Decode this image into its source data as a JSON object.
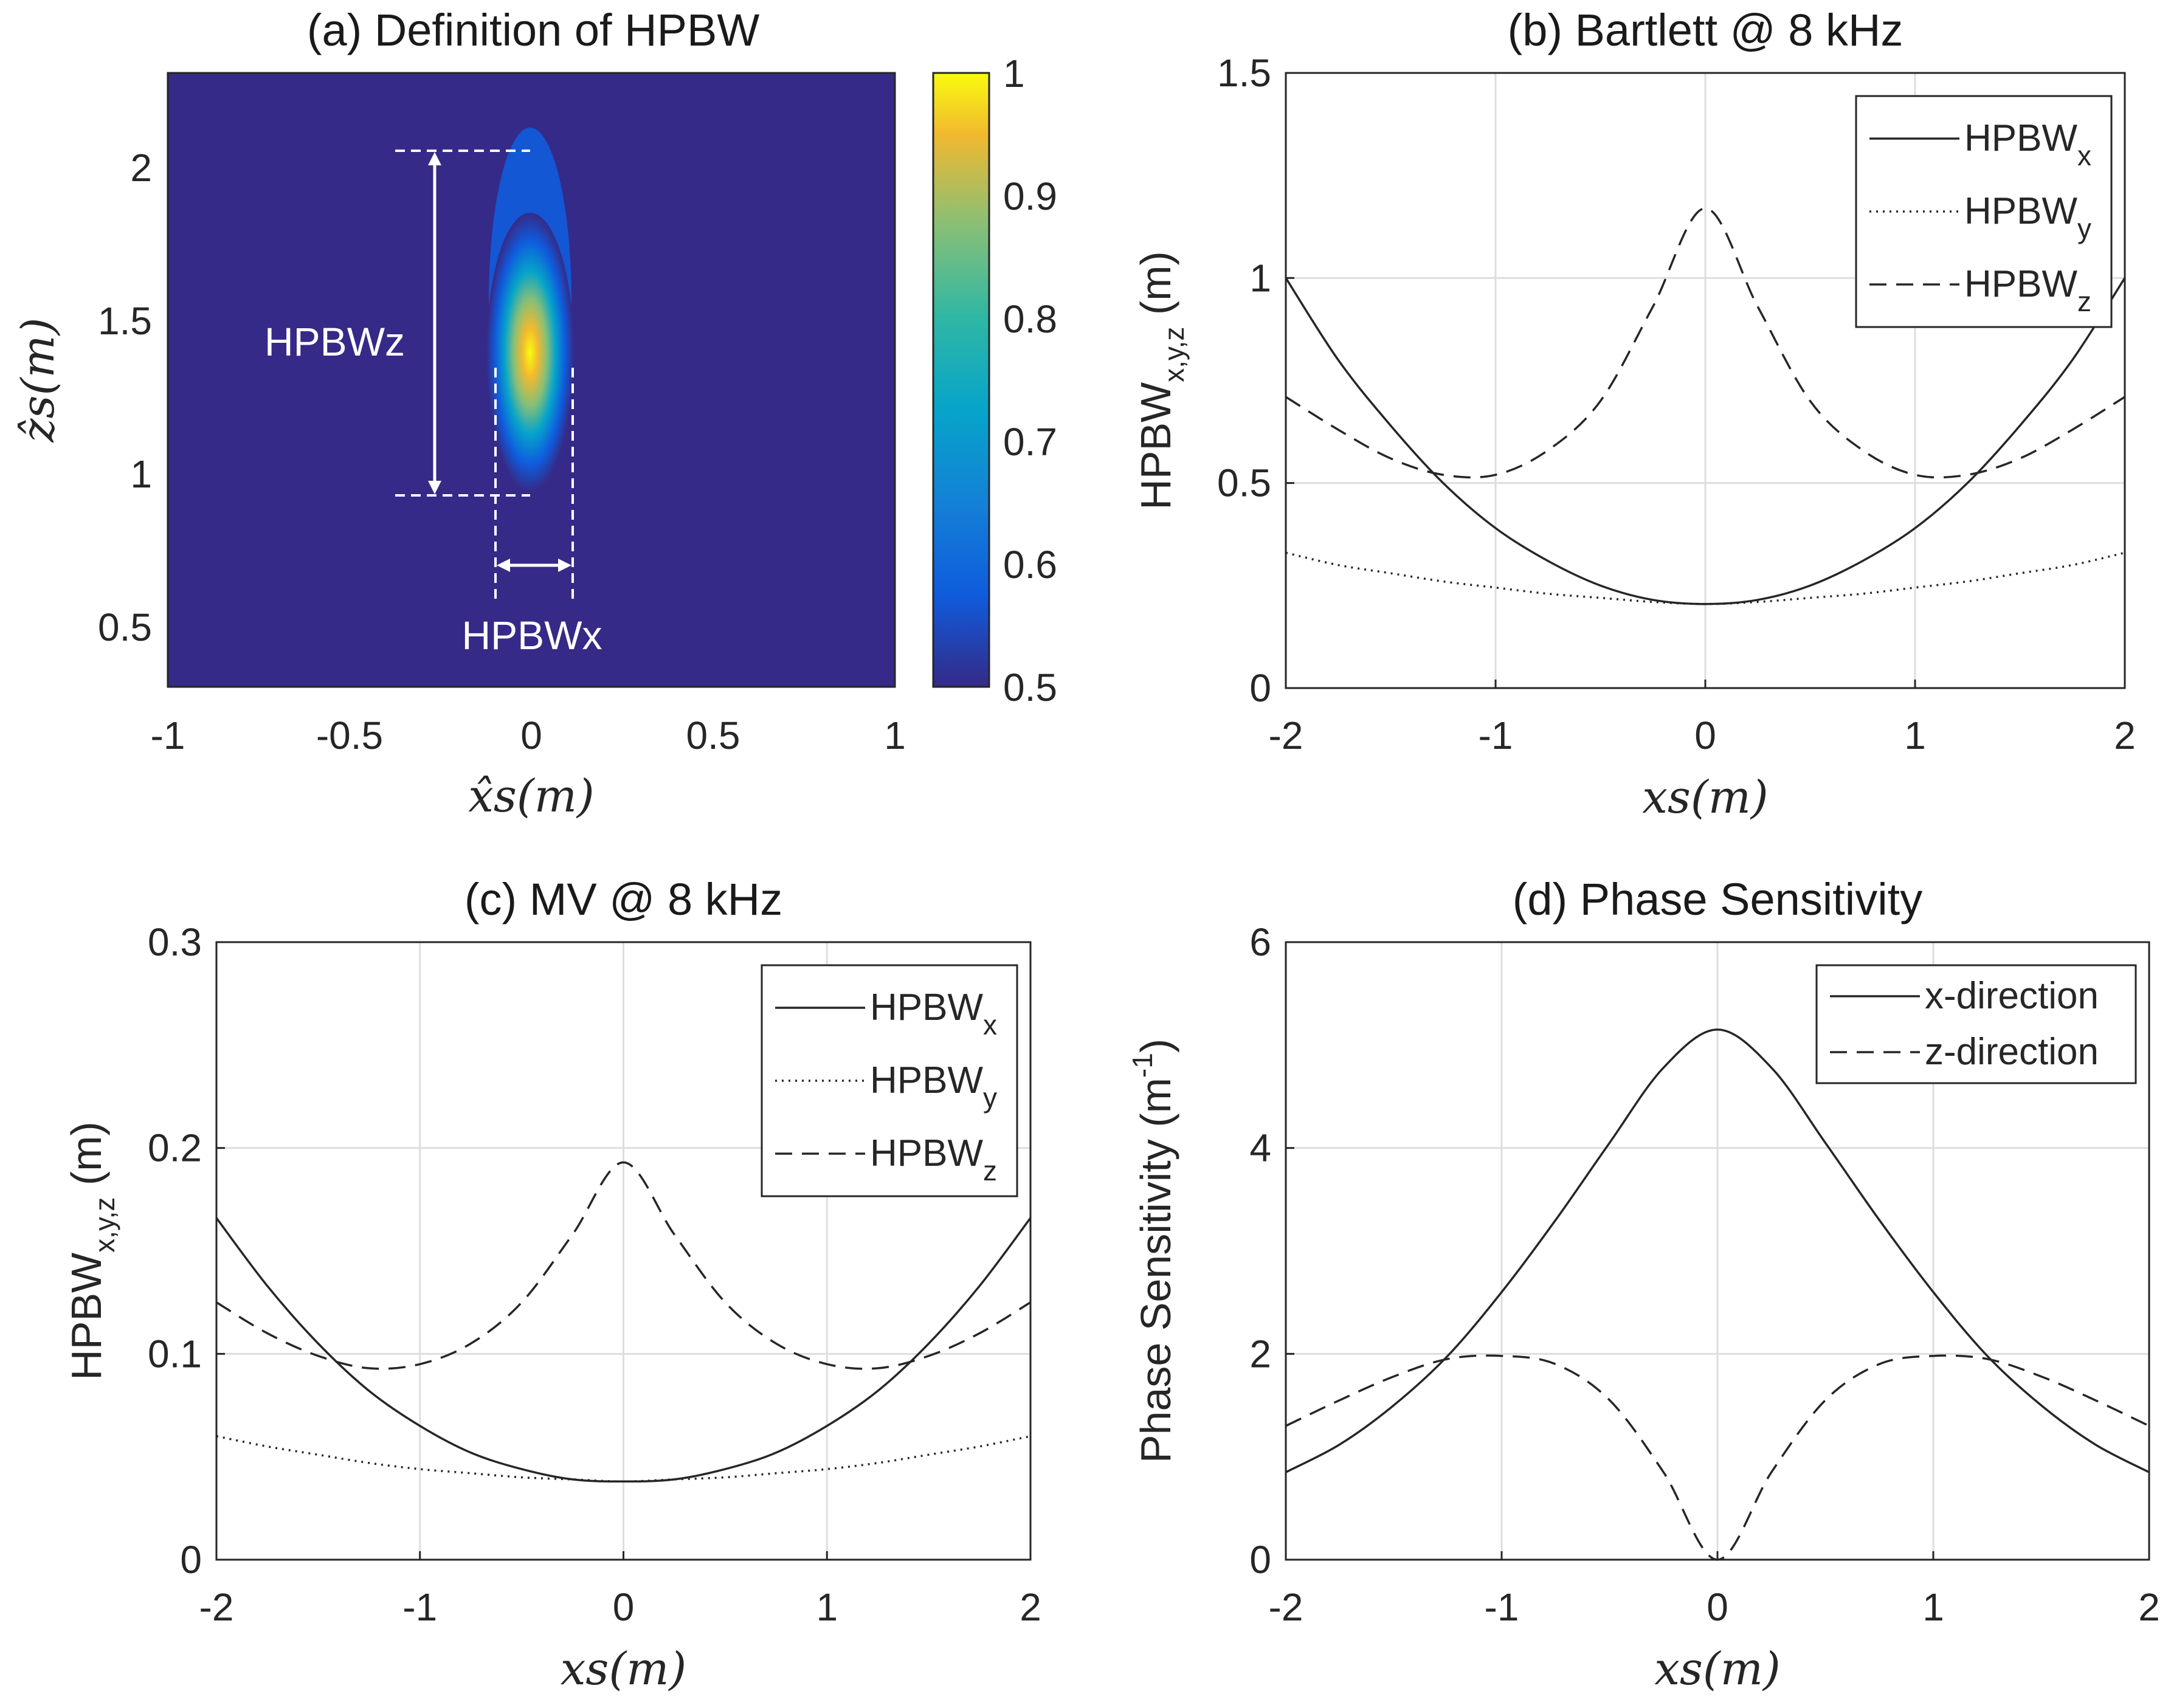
{
  "colors": {
    "line": "#262626",
    "grid": "#dedede",
    "parula_low": "#352a87",
    "parula_mid": "#1ba8c5",
    "parula_high": "#f9fb0e"
  },
  "chart_data": [
    {
      "id": "a",
      "type": "heatmap",
      "title": "(a) Definition of HPBW",
      "xlabel": "x̂s(m)",
      "ylabel": "ẑs(m)",
      "xlim": [
        -1,
        1
      ],
      "ylim": [
        0.3,
        2.3
      ],
      "xticks": [
        "-1",
        "-0.5",
        "0",
        "0.5",
        "1"
      ],
      "xtick_values": [
        -1,
        -0.5,
        0,
        0.5,
        1
      ],
      "yticks": [
        "0.5",
        "1",
        "1.5",
        "2"
      ],
      "ytick_values": [
        0.5,
        1,
        1.5,
        2
      ],
      "colorbar": {
        "range": [
          0.5,
          1
        ],
        "ticks": [
          "0.5",
          "0.6",
          "0.7",
          "0.8",
          "0.9",
          "1"
        ],
        "tick_values": [
          0.5,
          0.6,
          0.7,
          0.8,
          0.9,
          1
        ]
      },
      "peak": {
        "x": 0.0,
        "z": 1.33,
        "value": 1
      },
      "hpbw_x": {
        "from": -0.1,
        "to": 0.12,
        "label": "HPBWx"
      },
      "hpbw_z": {
        "from": 0.93,
        "to": 2.05,
        "label": "HPBWz"
      },
      "grid": false
    },
    {
      "id": "b",
      "type": "line",
      "title": "(b) Bartlett @ 8 kHz",
      "xlabel": "xs(m)",
      "ylabel": "HPBW",
      "ylabel_sub": "x,y,z",
      "ylabel_unit": " (m)",
      "xlim": [
        -2,
        2
      ],
      "ylim": [
        0,
        1.5
      ],
      "xticks": [
        "-2",
        "-1",
        "0",
        "1",
        "2"
      ],
      "xtick_values": [
        -2,
        -1,
        0,
        1,
        2
      ],
      "yticks": [
        "0",
        "0.5",
        "1",
        "1.5"
      ],
      "ytick_values": [
        0,
        0.5,
        1,
        1.5
      ],
      "legend": "top-right",
      "grid": true,
      "x": [
        -2,
        -1.75,
        -1.5,
        -1.25,
        -1,
        -0.75,
        -0.5,
        -0.25,
        0,
        0.25,
        0.5,
        0.75,
        1,
        1.25,
        1.5,
        1.75,
        2
      ],
      "series": [
        {
          "name": "HPBW",
          "sub": "x",
          "style": "solid",
          "values": [
            1.0,
            0.8,
            0.64,
            0.5,
            0.39,
            0.31,
            0.25,
            0.215,
            0.205,
            0.215,
            0.25,
            0.31,
            0.39,
            0.5,
            0.64,
            0.8,
            1.0
          ]
        },
        {
          "name": "HPBW",
          "sub": "y",
          "style": "dotted",
          "values": [
            0.33,
            0.3,
            0.28,
            0.26,
            0.245,
            0.23,
            0.22,
            0.21,
            0.205,
            0.21,
            0.22,
            0.23,
            0.245,
            0.26,
            0.28,
            0.3,
            0.33
          ]
        },
        {
          "name": "HPBW",
          "sub": "z",
          "style": "dashed",
          "values": [
            0.71,
            0.63,
            0.56,
            0.52,
            0.52,
            0.58,
            0.7,
            0.93,
            1.17,
            0.93,
            0.7,
            0.58,
            0.52,
            0.52,
            0.56,
            0.63,
            0.71
          ]
        }
      ]
    },
    {
      "id": "c",
      "type": "line",
      "title": "(c) MV @ 8 kHz",
      "xlabel": "xs(m)",
      "ylabel": "HPBW",
      "ylabel_sub": "x,y,z",
      "ylabel_unit": " (m)",
      "xlim": [
        -2,
        2
      ],
      "ylim": [
        0,
        0.3
      ],
      "xticks": [
        "-2",
        "-1",
        "0",
        "1",
        "2"
      ],
      "xtick_values": [
        -2,
        -1,
        0,
        1,
        2
      ],
      "yticks": [
        "0",
        "0.1",
        "0.2",
        "0.3"
      ],
      "ytick_values": [
        0,
        0.1,
        0.2,
        0.3
      ],
      "legend": "top-right",
      "grid": true,
      "x": [
        -2,
        -1.75,
        -1.5,
        -1.25,
        -1,
        -0.75,
        -0.5,
        -0.25,
        0,
        0.25,
        0.5,
        0.75,
        1,
        1.25,
        1.5,
        1.75,
        2
      ],
      "series": [
        {
          "name": "HPBW",
          "sub": "x",
          "style": "solid",
          "values": [
            0.166,
            0.133,
            0.105,
            0.082,
            0.065,
            0.052,
            0.044,
            0.039,
            0.038,
            0.039,
            0.044,
            0.052,
            0.065,
            0.082,
            0.105,
            0.133,
            0.166
          ]
        },
        {
          "name": "HPBW",
          "sub": "y",
          "style": "dotted",
          "values": [
            0.06,
            0.055,
            0.051,
            0.047,
            0.044,
            0.042,
            0.04,
            0.039,
            0.038,
            0.039,
            0.04,
            0.042,
            0.044,
            0.047,
            0.051,
            0.055,
            0.06
          ]
        },
        {
          "name": "HPBW",
          "sub": "z",
          "style": "dashed",
          "values": [
            0.125,
            0.11,
            0.099,
            0.093,
            0.095,
            0.105,
            0.125,
            0.158,
            0.193,
            0.158,
            0.125,
            0.105,
            0.095,
            0.093,
            0.099,
            0.11,
            0.125
          ]
        }
      ]
    },
    {
      "id": "d",
      "type": "line",
      "title": "(d) Phase Sensitivity",
      "xlabel": "xs(m)",
      "ylabel": "Phase Sensitivity (m",
      "ylabel_sup": "-1",
      "ylabel_unit": ")",
      "xlim": [
        -2,
        2
      ],
      "ylim": [
        0,
        6
      ],
      "xticks": [
        "-2",
        "-1",
        "0",
        "1",
        "2"
      ],
      "xtick_values": [
        -2,
        -1,
        0,
        1,
        2
      ],
      "yticks": [
        "0",
        "2",
        "4",
        "6"
      ],
      "ytick_values": [
        0,
        2,
        4,
        6
      ],
      "legend": "top-right",
      "grid": true,
      "x": [
        -2,
        -1.75,
        -1.5,
        -1.25,
        -1,
        -0.75,
        -0.5,
        -0.25,
        0,
        0.25,
        0.5,
        0.75,
        1,
        1.25,
        1.5,
        1.75,
        2
      ],
      "series": [
        {
          "name": "x-direction",
          "style": "solid",
          "values": [
            0.85,
            1.12,
            1.5,
            1.98,
            2.6,
            3.3,
            4.05,
            4.78,
            5.15,
            4.78,
            4.05,
            3.3,
            2.6,
            1.98,
            1.5,
            1.12,
            0.85
          ]
        },
        {
          "name": "z-direction",
          "style": "dashed",
          "values": [
            1.3,
            1.55,
            1.78,
            1.95,
            1.98,
            1.9,
            1.55,
            0.85,
            0.0,
            0.85,
            1.55,
            1.9,
            1.98,
            1.95,
            1.78,
            1.55,
            1.3
          ]
        }
      ]
    }
  ]
}
